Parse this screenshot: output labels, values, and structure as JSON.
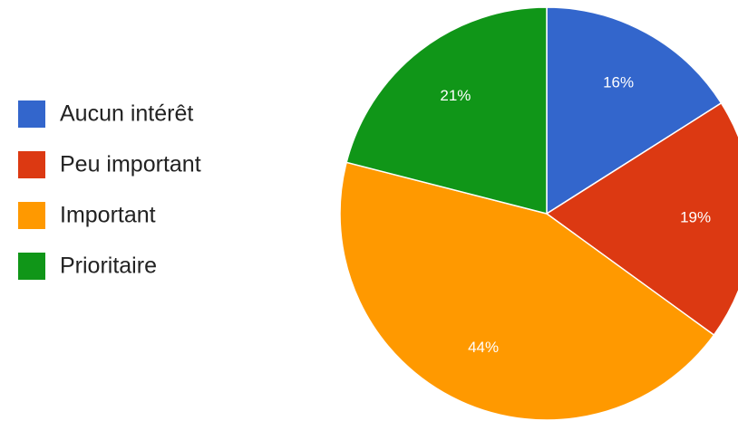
{
  "chart_data": {
    "type": "pie",
    "title": "",
    "legend_position": "left",
    "start_angle_deg": 0,
    "direction": "clockwise",
    "slices": [
      {
        "name": "Aucun intérêt",
        "value": 16,
        "label": "16%",
        "color": "#3366cc"
      },
      {
        "name": "Peu important",
        "value": 19,
        "label": "19%",
        "color": "#dc3912"
      },
      {
        "name": "Important",
        "value": 44,
        "label": "44%",
        "color": "#ff9900"
      },
      {
        "name": "Prioritaire",
        "value": 21,
        "label": "21%",
        "color": "#109618"
      }
    ]
  }
}
